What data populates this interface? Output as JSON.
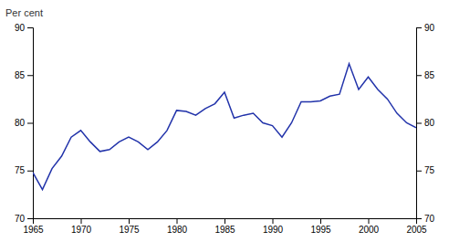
{
  "chart_data": {
    "type": "line",
    "y_label": "Per cent",
    "x": [
      1965,
      1966,
      1967,
      1968,
      1969,
      1970,
      1971,
      1972,
      1973,
      1974,
      1975,
      1976,
      1977,
      1978,
      1979,
      1980,
      1981,
      1982,
      1983,
      1984,
      1985,
      1986,
      1987,
      1988,
      1989,
      1990,
      1991,
      1992,
      1993,
      1994,
      1995,
      1996,
      1997,
      1998,
      1999,
      2000,
      2001,
      2002,
      2003,
      2004,
      2005
    ],
    "values": [
      74.8,
      73.0,
      75.2,
      76.5,
      78.5,
      79.2,
      78.0,
      77.0,
      77.2,
      78.0,
      78.5,
      78.0,
      77.2,
      78.0,
      79.2,
      81.3,
      81.2,
      80.8,
      81.5,
      82.0,
      83.2,
      80.5,
      80.8,
      81.0,
      80.0,
      79.7,
      78.5,
      80.0,
      82.2,
      82.2,
      82.3,
      82.8,
      83.0,
      86.2,
      83.5,
      84.8,
      83.5,
      82.5,
      81.0,
      80.0,
      79.5
    ],
    "color": "#2233aa",
    "xlim": [
      1965,
      2005
    ],
    "xticks": [
      1965,
      1970,
      1975,
      1980,
      1985,
      1990,
      1995,
      2000,
      2005
    ],
    "ylim": [
      70,
      90
    ],
    "yticks": [
      70,
      75,
      80,
      85,
      90
    ],
    "y2lim": [
      70,
      90
    ],
    "y2ticks": [
      70,
      75,
      80,
      85,
      90
    ],
    "grid": false
  }
}
